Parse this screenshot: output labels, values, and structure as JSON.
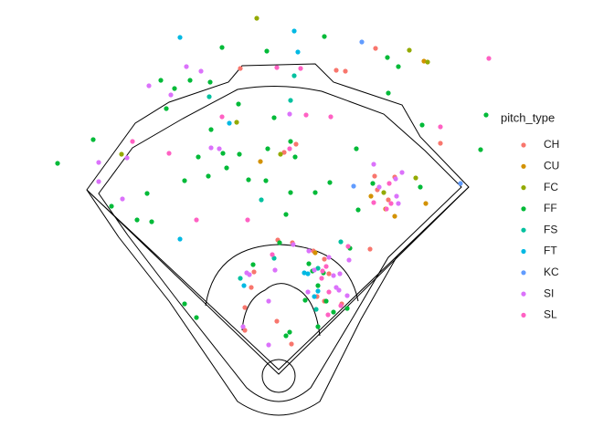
{
  "chart_data": {
    "type": "scatter",
    "legend_title": "pitch_type",
    "legend": "right",
    "xlim": [
      0,
      490
    ],
    "ylim": [
      460,
      0
    ],
    "series": [
      {
        "name": "CH",
        "color": "#F8766D",
        "x": [
          213,
          318,
          328,
          361,
          274,
          261,
          228,
          225,
          254,
          270,
          293,
          305,
          253,
          218,
          269,
          324,
          297,
          305,
          355,
          363,
          382,
          432,
          218,
          360,
          375,
          310
        ],
        "values": [
          65,
          67,
          68,
          43,
          148,
          157,
          288,
          305,
          253,
          256,
          265,
          274,
          342,
          352,
          367,
          323,
          315,
          320,
          263,
          198,
          184,
          147,
          327,
          183,
          209,
          290
        ]
      },
      {
        "name": "CU",
        "color": "#D39200",
        "x": [
          235,
          414,
          382,
          372,
          356,
          416,
          295
        ],
        "values": [
          167,
          57,
          227,
          219,
          205,
          213,
          267
        ]
      },
      {
        "name": "FC",
        "color": "#93AA00",
        "x": [
          231,
          398,
          418,
          209,
          257,
          83,
          370,
          405
        ],
        "values": [
          10,
          45,
          58,
          124,
          159,
          159,
          201,
          185
        ]
      },
      {
        "name": "FF",
        "color": "#00BA38",
        "x": [
          13,
          52,
          193,
          242,
          305,
          374,
          386,
          375,
          412,
          482,
          476,
          141,
          126,
          158,
          180,
          211,
          181,
          167,
          152,
          178,
          111,
          100,
          116,
          72,
          198,
          222,
          212,
          194,
          243,
          241,
          268,
          273,
          268,
          295,
          263,
          340,
          311,
          342,
          333,
          256,
          227,
          288,
          292,
          298,
          304,
          284,
          307,
          298,
          315,
          330,
          267,
          152,
          165,
          263,
          132,
          250,
          358,
          410
        ],
        "values": [
          169,
          143,
          42,
          46,
          30,
          53,
          63,
          92,
          127,
          116,
          154,
          87,
          78,
          78,
          80,
          104,
          132,
          162,
          188,
          183,
          202,
          231,
          233,
          216,
          174,
          187,
          159,
          158,
          153,
          188,
          145,
          162,
          201,
          201,
          225,
          153,
          190,
          220,
          262,
          256,
          280,
          279,
          287,
          303,
          289,
          319,
          320,
          348,
          332,
          328,
          354,
          323,
          338,
          358,
          109,
          119,
          191,
          195
        ]
      },
      {
        "name": "FS",
        "color": "#00C19F",
        "x": [
          272,
          268,
          179,
          236,
          323,
          213,
          296,
          250,
          298
        ],
        "values": [
          73,
          100,
          96,
          209,
          255,
          295,
          329,
          273,
          284
        ]
      },
      {
        "name": "FT",
        "color": "#00B9E3",
        "x": [
          147,
          272,
          276,
          201,
          147,
          287,
          283,
          298,
          294,
          217
        ],
        "values": [
          31,
          24,
          47,
          125,
          252,
          290,
          289,
          309,
          315,
          303
        ]
      },
      {
        "name": "KC",
        "color": "#619CFF",
        "x": [
          346,
          454,
          337
        ],
        "values": [
          36,
          191,
          194
        ]
      },
      {
        "name": "SI",
        "color": "#DB72FB",
        "x": [
          154,
          170,
          113,
          137,
          267,
          181,
          190,
          58,
          58,
          89,
          84,
          223,
          220,
          251,
          244,
          288,
          271,
          310,
          294,
          315,
          322,
          321,
          330,
          318,
          287,
          359,
          365,
          384,
          383,
          390,
          216,
          244,
          332,
          386
        ],
        "values": [
          63,
          68,
          84,
          94,
          115,
          152,
          153,
          168,
          189,
          163,
          208,
          291,
          289,
          286,
          320,
          265,
          258,
          272,
          286,
          292,
          290,
          308,
          314,
          305,
          310,
          170,
          195,
          205,
          186,
          179,
          348,
          368,
          275,
          213
        ]
      },
      {
        "name": "SL",
        "color": "#FF61C3",
        "x": [
          485,
          432,
          279,
          253,
          285,
          267,
          312,
          135,
          193,
          95,
          165,
          221,
          376,
          378,
          359,
          373,
          307,
          302,
          310,
          323,
          331,
          309,
          248,
          303
        ],
        "values": [
          54,
          129,
          65,
          64,
          116,
          153,
          118,
          158,
          118,
          145,
          231,
          231,
          191,
          213,
          212,
          219,
          282,
          295,
          310,
          325,
          260,
          335,
          269,
          287
        ]
      }
    ]
  }
}
